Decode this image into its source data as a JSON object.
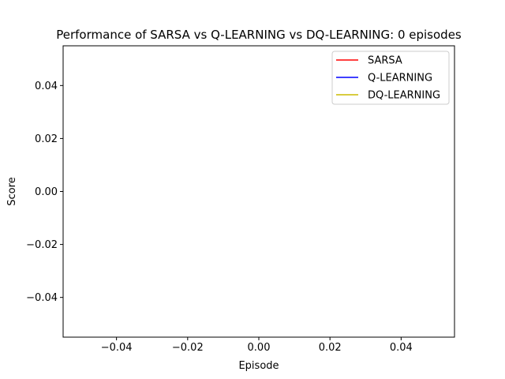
{
  "chart_data": {
    "type": "line",
    "title": "Performance of SARSA vs Q-LEARNING vs DQ-LEARNING: 0 episodes",
    "xlabel": "Episode",
    "ylabel": "Score",
    "xlim": [
      -0.055,
      0.055
    ],
    "ylim": [
      -0.055,
      0.055
    ],
    "x_ticks": [
      -0.04,
      -0.02,
      0.0,
      0.02,
      0.04
    ],
    "x_tick_labels": [
      "−0.04",
      "−0.02",
      "0.00",
      "0.02",
      "0.04"
    ],
    "y_ticks": [
      -0.04,
      -0.02,
      0.0,
      0.02,
      0.04
    ],
    "y_tick_labels": [
      "−0.04",
      "−0.02",
      "0.00",
      "0.02",
      "0.04"
    ],
    "grid": false,
    "legend_position": "top-right",
    "series": [
      {
        "name": "SARSA",
        "color": "#ff0000",
        "x": [],
        "values": []
      },
      {
        "name": "Q-LEARNING",
        "color": "#0000ff",
        "x": [],
        "values": []
      },
      {
        "name": "DQ-LEARNING",
        "color": "#ccbb00",
        "x": [],
        "values": []
      }
    ]
  }
}
